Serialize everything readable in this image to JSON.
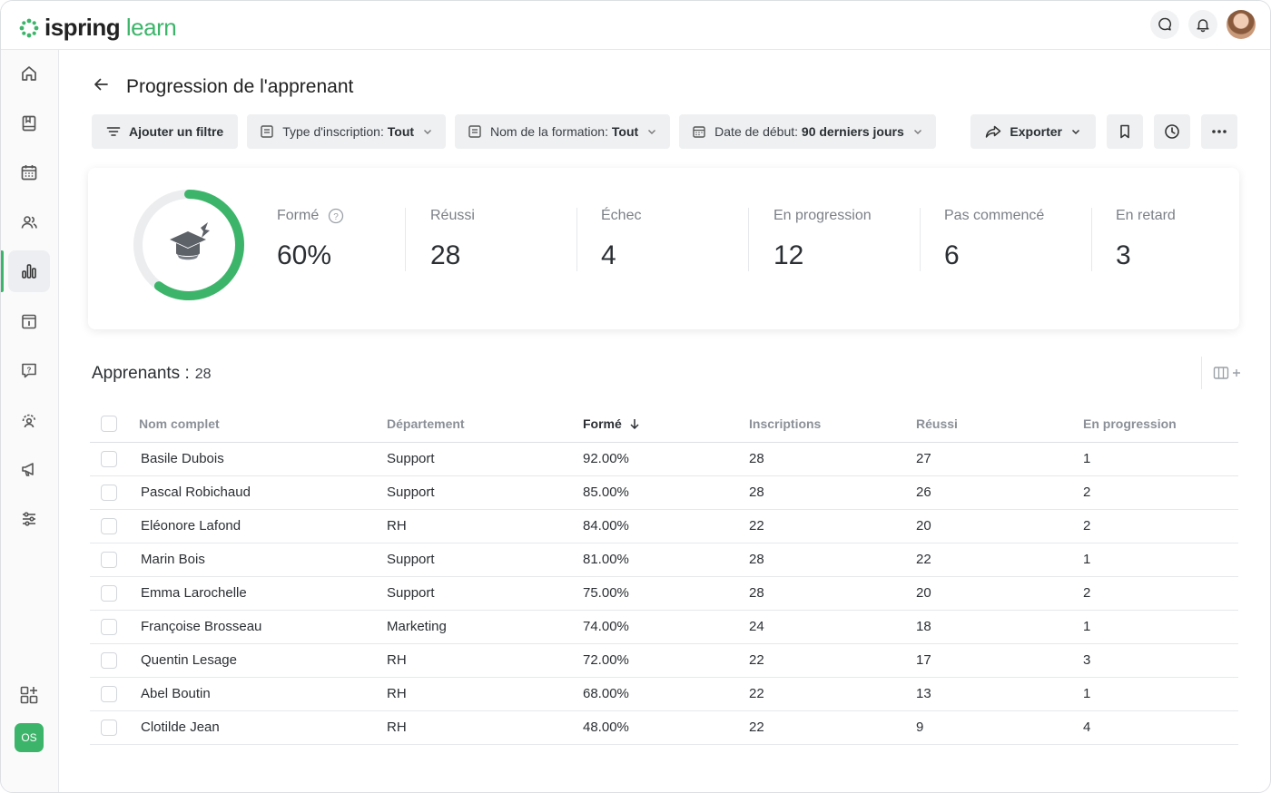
{
  "app": {
    "brand_main": "ispring",
    "brand_accent": "learn",
    "accent_color": "#3cb56a"
  },
  "topbar": {
    "icons": [
      "chat-icon",
      "bell-icon",
      "user-avatar"
    ]
  },
  "sidebar": {
    "items": [
      "home-icon",
      "book-icon",
      "calendar-icon",
      "users-icon",
      "chart-icon",
      "info-icon",
      "help-icon",
      "support-icon",
      "megaphone-icon",
      "settings-icon",
      "add-widget-icon"
    ],
    "active": "chart-icon",
    "badge": "OS"
  },
  "page": {
    "title": "Progression de l'apprenant"
  },
  "filters": {
    "add_filter": "Ajouter un filtre",
    "enrollment_label": "Type d'inscription:",
    "enrollment_value": "Tout",
    "course_label": "Nom de la formation:",
    "course_value": "Tout",
    "date_label": "Date de début:",
    "date_value": "90 derniers jours"
  },
  "actions": {
    "export": "Exporter"
  },
  "summary": {
    "trained_label": "Formé",
    "trained_value": "60%",
    "trained_fraction": 0.6,
    "passed_label": "Réussi",
    "passed_value": "28",
    "failed_label": "Échec",
    "failed_value": "4",
    "progress_label": "En progression",
    "progress_value": "12",
    "notstarted_label": "Pas commencé",
    "notstarted_value": "6",
    "late_label": "En retard",
    "late_value": "3"
  },
  "learners": {
    "title": "Apprenants :",
    "count": "28",
    "columns": [
      "Nom complet",
      "Département",
      "Formé",
      "Inscriptions",
      "Réussi",
      "En progression"
    ],
    "rows": [
      [
        "Basile Dubois",
        "Support",
        "92.00%",
        "28",
        "27",
        "1"
      ],
      [
        "Pascal Robichaud",
        "Support",
        "85.00%",
        "28",
        "26",
        "2"
      ],
      [
        "Eléonore Lafond",
        "RH",
        "84.00%",
        "22",
        "20",
        "2"
      ],
      [
        "Marin Bois",
        "Support",
        "81.00%",
        "28",
        "22",
        "1"
      ],
      [
        "Emma Larochelle",
        "Support",
        "75.00%",
        "28",
        "20",
        "2"
      ],
      [
        "Françoise Brosseau",
        "Marketing",
        "74.00%",
        "24",
        "18",
        "1"
      ],
      [
        "Quentin Lesage",
        "RH",
        "72.00%",
        "22",
        "17",
        "3"
      ],
      [
        "Abel Boutin",
        "RH",
        "68.00%",
        "22",
        "13",
        "1"
      ],
      [
        "Clotilde Jean",
        "RH",
        "48.00%",
        "22",
        "9",
        "4"
      ]
    ]
  }
}
